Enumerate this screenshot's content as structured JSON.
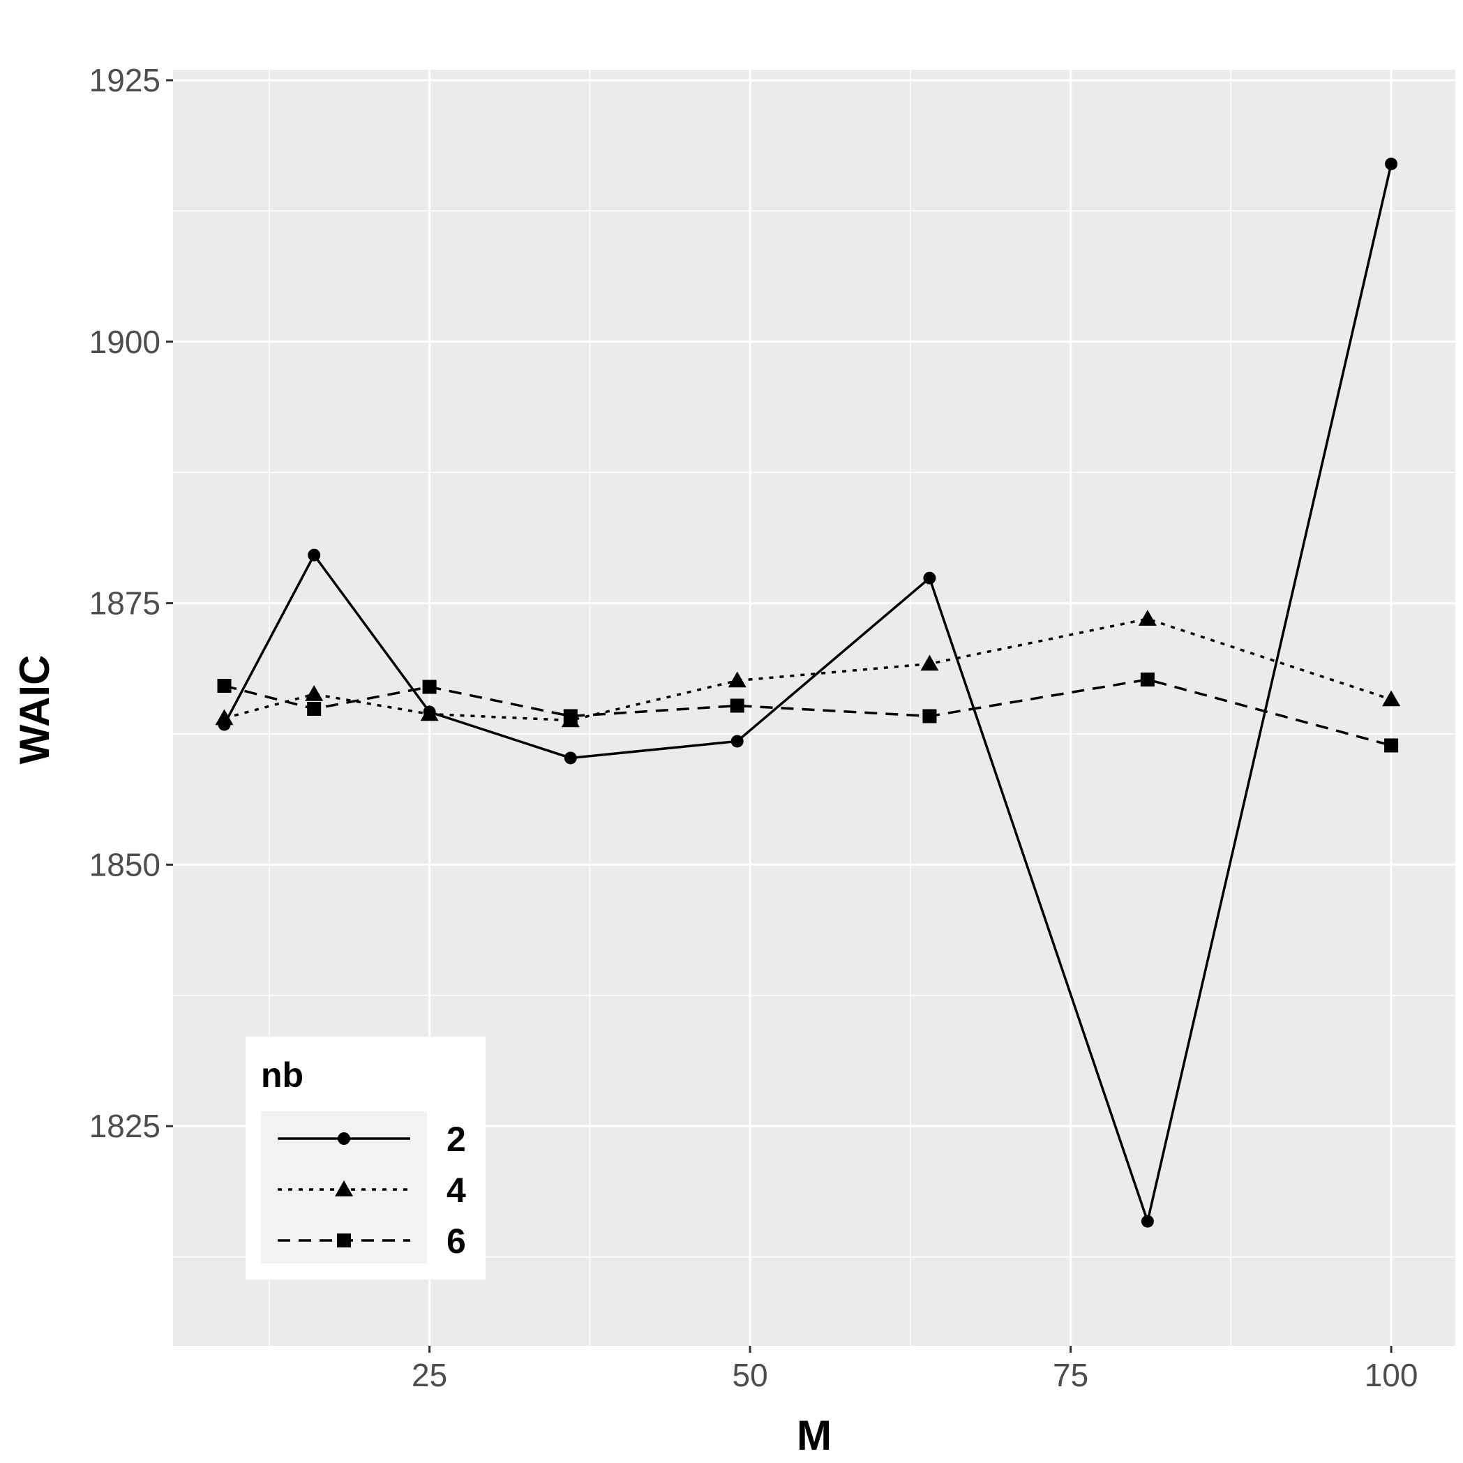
{
  "chart_data": {
    "type": "line",
    "xlabel": "M",
    "ylabel": "WAIC",
    "xlim": [
      5,
      105
    ],
    "ylim": [
      1804,
      1926
    ],
    "x_ticks": [
      25,
      50,
      75,
      100
    ],
    "y_ticks": [
      1825,
      1850,
      1875,
      1900,
      1925
    ],
    "grid": true,
    "legend": {
      "title": "nb",
      "position": "bottom-left"
    },
    "x": [
      9,
      16,
      25,
      36,
      49,
      64,
      81,
      100
    ],
    "series": [
      {
        "name": "2",
        "marker": "circle",
        "line": "solid",
        "values": [
          1863.4,
          1879.6,
          1864.6,
          1860.2,
          1861.8,
          1877.4,
          1815.9,
          1917.0
        ]
      },
      {
        "name": "4",
        "marker": "triangle",
        "line": "dotted",
        "values": [
          1864.0,
          1866.3,
          1864.4,
          1863.8,
          1867.6,
          1869.2,
          1873.5,
          1865.8
        ]
      },
      {
        "name": "6",
        "marker": "square",
        "line": "dashed",
        "values": [
          1867.1,
          1864.9,
          1867.0,
          1864.2,
          1865.2,
          1864.2,
          1867.7,
          1861.4
        ]
      }
    ]
  },
  "colors": {
    "panel": "#ebebeb",
    "grid": "#ffffff",
    "ink": "#000000",
    "tick_text": "#4d4d4d"
  }
}
